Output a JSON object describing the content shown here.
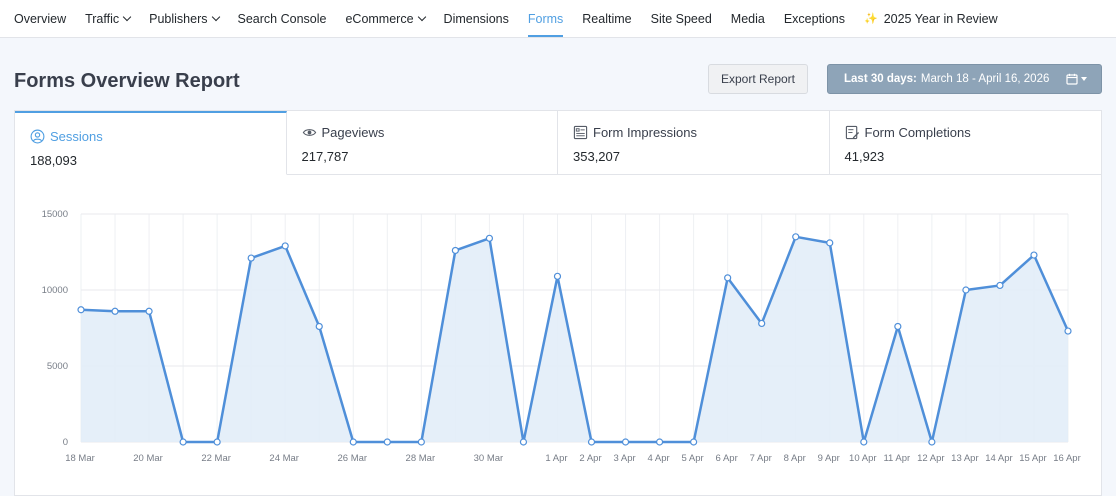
{
  "nav": {
    "items": [
      {
        "label": "Overview",
        "name": "nav-overview",
        "chevron": false,
        "active": false
      },
      {
        "label": "Traffic",
        "name": "nav-traffic",
        "chevron": true,
        "active": false
      },
      {
        "label": "Publishers",
        "name": "nav-publishers",
        "chevron": true,
        "active": false
      },
      {
        "label": "Search Console",
        "name": "nav-search-console",
        "chevron": false,
        "active": false
      },
      {
        "label": "eCommerce",
        "name": "nav-ecommerce",
        "chevron": true,
        "active": false
      },
      {
        "label": "Dimensions",
        "name": "nav-dimensions",
        "chevron": false,
        "active": false
      },
      {
        "label": "Forms",
        "name": "nav-forms",
        "chevron": false,
        "active": true
      },
      {
        "label": "Realtime",
        "name": "nav-realtime",
        "chevron": false,
        "active": false
      },
      {
        "label": "Site Speed",
        "name": "nav-site-speed",
        "chevron": false,
        "active": false
      },
      {
        "label": "Media",
        "name": "nav-media",
        "chevron": false,
        "active": false
      },
      {
        "label": "Exceptions",
        "name": "nav-exceptions",
        "chevron": false,
        "active": false
      },
      {
        "label": "2025 Year in Review",
        "name": "nav-year-in-review",
        "chevron": false,
        "active": false,
        "icon": "party-popper-icon"
      }
    ]
  },
  "header": {
    "title": "Forms Overview Report",
    "export_label": "Export Report",
    "date_prefix": "Last 30 days:",
    "date_range": "March 18 - April 16, 2026",
    "calendar_icon": "calendar-icon"
  },
  "tabs": [
    {
      "label": "Sessions",
      "value": "188,093",
      "icon": "user-circle-icon",
      "active": true
    },
    {
      "label": "Pageviews",
      "value": "217,787",
      "icon": "eye-icon",
      "active": false
    },
    {
      "label": "Form Impressions",
      "value": "353,207",
      "icon": "form-icon",
      "active": false
    },
    {
      "label": "Form Completions",
      "value": "41,923",
      "icon": "form-edit-icon",
      "active": false
    }
  ],
  "colors": {
    "accent": "#509fe2",
    "line": "#4f8fd9",
    "fill": "#e2edf8",
    "date_button": "#8ea4b8"
  },
  "chart_data": {
    "type": "area",
    "series": [
      {
        "values": [
          8700,
          8600,
          8600,
          0,
          0,
          12100,
          12900,
          7600,
          0,
          0,
          0,
          12600,
          13400,
          0,
          10900,
          0,
          0,
          0,
          0,
          10800,
          7800,
          13500,
          13100,
          0,
          7600,
          0,
          10000,
          10300,
          12300,
          7300
        ]
      }
    ],
    "x": [
      "18 Mar",
      "19 Mar",
      "20 Mar",
      "21 Mar",
      "22 Mar",
      "23 Mar",
      "24 Mar",
      "25 Mar",
      "26 Mar",
      "27 Mar",
      "28 Mar",
      "29 Mar",
      "30 Mar",
      "31 Mar",
      "1 Apr",
      "2 Apr",
      "3 Apr",
      "4 Apr",
      "5 Apr",
      "6 Apr",
      "7 Apr",
      "8 Apr",
      "9 Apr",
      "10 Apr",
      "11 Apr",
      "12 Apr",
      "13 Apr",
      "14 Apr",
      "15 Apr",
      "16 Apr"
    ],
    "x_tick_labels": [
      "18 Mar",
      "",
      "20 Mar",
      "",
      "22 Mar",
      "",
      "24 Mar",
      "",
      "26 Mar",
      "",
      "28 Mar",
      "",
      "30 Mar",
      "",
      "1 Apr",
      "2 Apr",
      "3 Apr",
      "4 Apr",
      "5 Apr",
      "6 Apr",
      "7 Apr",
      "8 Apr",
      "9 Apr",
      "10 Apr",
      "11 Apr",
      "12 Apr",
      "13 Apr",
      "14 Apr",
      "15 Apr",
      "16 Apr"
    ],
    "y_ticks": [
      "0",
      "5000",
      "10000",
      "15000"
    ],
    "ylim": [
      0,
      15000
    ],
    "grid": true,
    "legend": "none"
  }
}
